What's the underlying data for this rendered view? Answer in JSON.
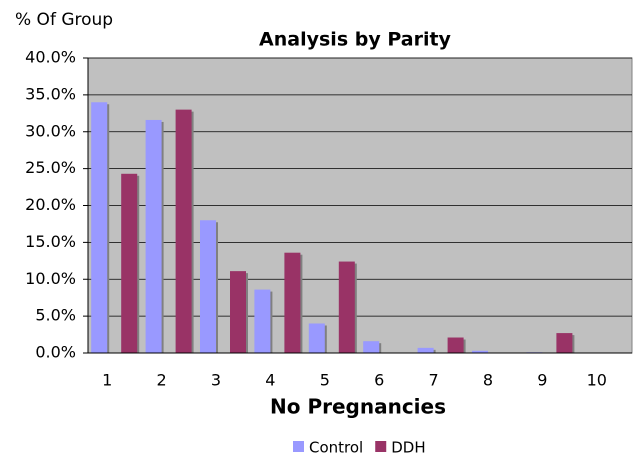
{
  "chart_data": {
    "type": "bar",
    "title": "Analysis by Parity",
    "y_label": "% Of Group",
    "x_label": "No Pregnancies",
    "categories": [
      "1",
      "2",
      "3",
      "4",
      "5",
      "6",
      "7",
      "8",
      "9",
      "10"
    ],
    "series": [
      {
        "name": "Control",
        "color": "#9999ff",
        "values": [
          34.0,
          31.6,
          18.0,
          8.6,
          4.0,
          1.6,
          0.7,
          0.3,
          0.1,
          0.05
        ]
      },
      {
        "name": "DDH",
        "color": "#993366",
        "values": [
          24.3,
          33.0,
          11.1,
          13.6,
          12.4,
          0,
          2.1,
          0,
          2.7,
          0
        ]
      }
    ],
    "ylim": [
      0,
      40
    ],
    "yticks": [
      {
        "value": 0,
        "label": "0.0%"
      },
      {
        "value": 5,
        "label": "5.0%"
      },
      {
        "value": 10,
        "label": "10.0%"
      },
      {
        "value": 15,
        "label": "15.0%"
      },
      {
        "value": 20,
        "label": "20.0%"
      },
      {
        "value": 25,
        "label": "25.0%"
      },
      {
        "value": 30,
        "label": "30.0%"
      },
      {
        "value": 35,
        "label": "35.0%"
      },
      {
        "value": 40,
        "label": "40.0%"
      }
    ],
    "grid": true,
    "legend": "bottom"
  }
}
